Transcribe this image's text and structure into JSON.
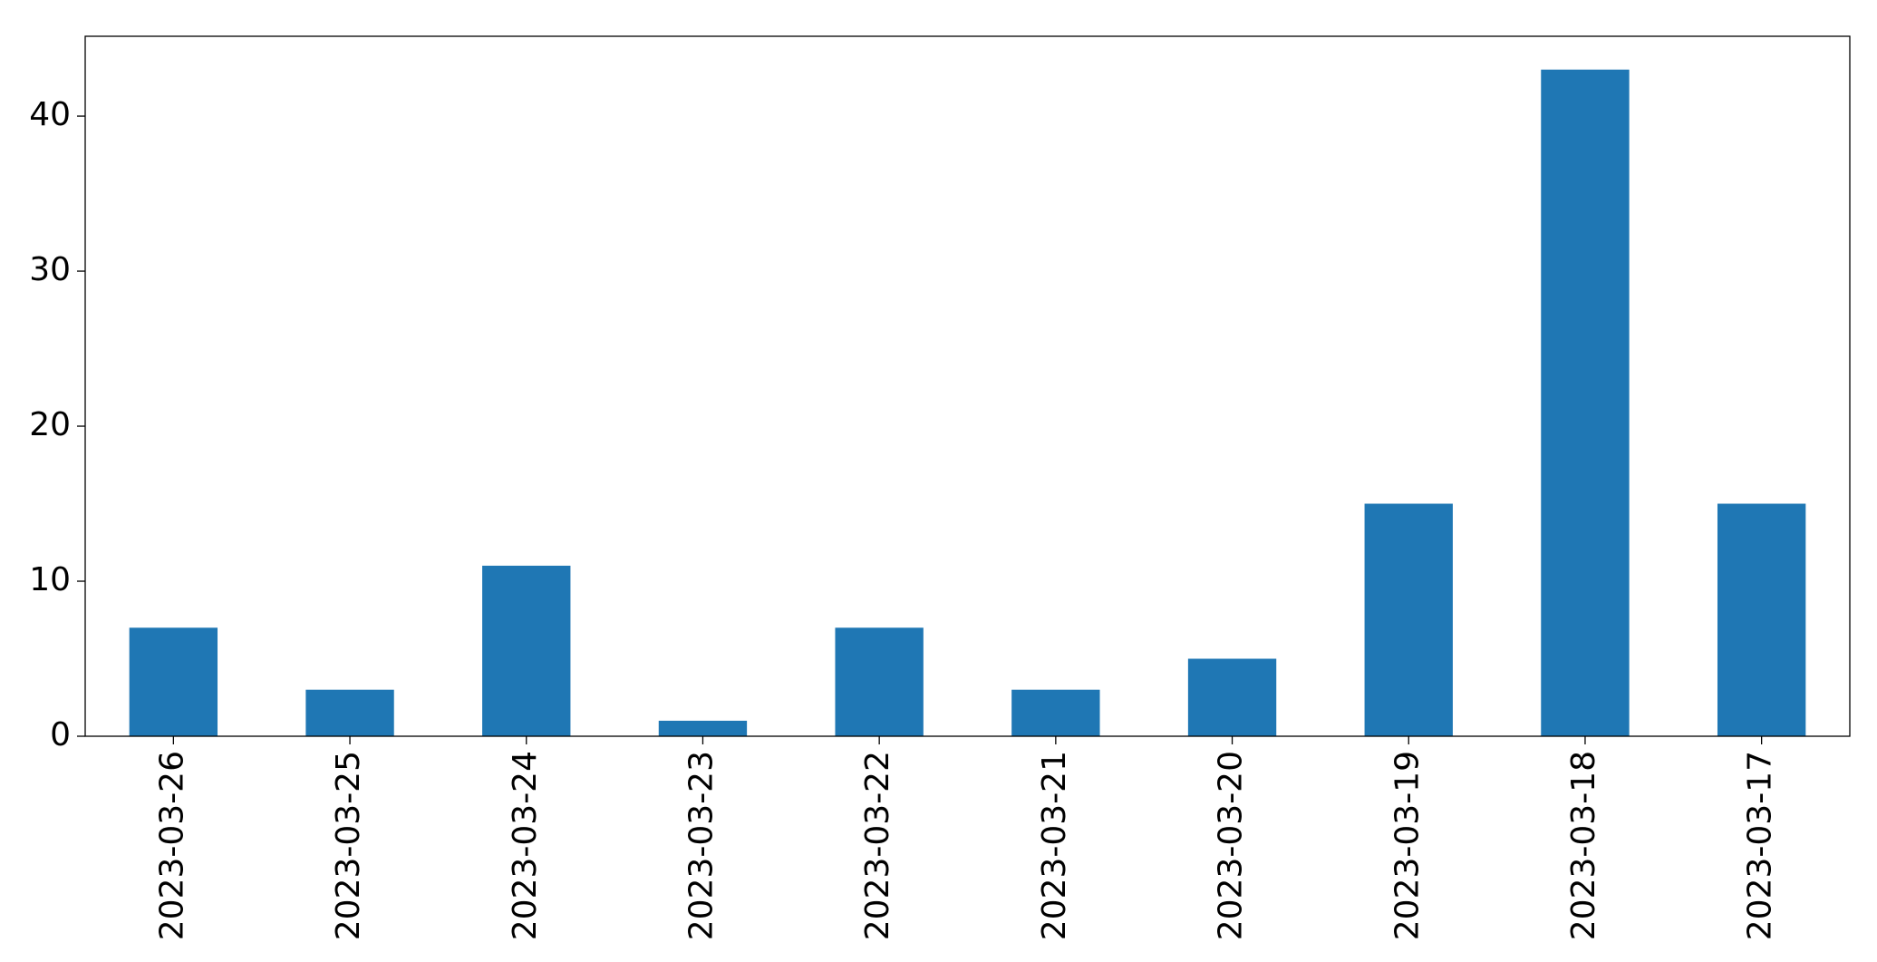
{
  "chart_data": {
    "type": "bar",
    "categories": [
      "2023-03-26",
      "2023-03-25",
      "2023-03-24",
      "2023-03-23",
      "2023-03-22",
      "2023-03-21",
      "2023-03-20",
      "2023-03-19",
      "2023-03-18",
      "2023-03-17"
    ],
    "values": [
      7,
      3,
      11,
      1,
      7,
      3,
      5,
      15,
      43,
      15
    ],
    "color": "#1f77b4",
    "ylim": [
      0,
      45.15
    ],
    "yticks": [
      0,
      10,
      20,
      30,
      40
    ],
    "grid": false
  }
}
